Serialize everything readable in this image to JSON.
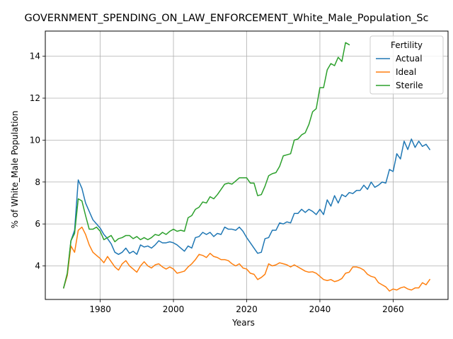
{
  "chart_data": {
    "type": "line",
    "title": "GOVERNMENT_SPENDING_ON_LAW_ENFORCEMENT_White_Male_Population_Sc",
    "xlabel": "Years",
    "ylabel": "% of White_Male Population",
    "xlim": [
      1965,
      2075
    ],
    "ylim": [
      2.4,
      15.2
    ],
    "xticks": [
      1980,
      2000,
      2020,
      2040,
      2060
    ],
    "yticks": [
      4,
      6,
      8,
      10,
      12,
      14
    ],
    "grid": true,
    "legend": {
      "title": "Fertility",
      "placement": "top-right"
    },
    "series": [
      {
        "name": "Actual",
        "color": "#1f77b4",
        "x": [
          1970,
          1971,
          1972,
          1973,
          1974,
          1975,
          1976,
          1977,
          1978,
          1979,
          1980,
          1981,
          1982,
          1983,
          1984,
          1985,
          1986,
          1987,
          1988,
          1989,
          1990,
          1991,
          1992,
          1993,
          1994,
          1995,
          1996,
          1997,
          1998,
          1999,
          2000,
          2001,
          2002,
          2003,
          2004,
          2005,
          2006,
          2007,
          2008,
          2009,
          2010,
          2011,
          2012,
          2013,
          2014,
          2015,
          2016,
          2017,
          2018,
          2019,
          2020,
          2021,
          2022,
          2023,
          2024,
          2025,
          2026,
          2027,
          2028,
          2029,
          2030,
          2031,
          2032,
          2033,
          2034,
          2035,
          2036,
          2037,
          2038,
          2039,
          2040,
          2041,
          2042,
          2043,
          2044,
          2045,
          2046,
          2047,
          2048,
          2049,
          2050,
          2051,
          2052,
          2053,
          2054,
          2055,
          2056,
          2057,
          2058,
          2059,
          2060,
          2061,
          2062,
          2063,
          2064,
          2065,
          2066,
          2067,
          2068,
          2069,
          2070
        ],
        "values": [
          2.95,
          3.55,
          5.2,
          5.7,
          8.1,
          7.7,
          7.0,
          6.6,
          6.2,
          6.0,
          5.8,
          5.5,
          5.3,
          5.05,
          4.65,
          4.55,
          4.65,
          4.85,
          4.6,
          4.7,
          4.55,
          5.0,
          4.9,
          4.95,
          4.85,
          5.0,
          5.2,
          5.1,
          5.1,
          5.15,
          5.1,
          5.0,
          4.85,
          4.7,
          4.95,
          4.85,
          5.35,
          5.4,
          5.6,
          5.5,
          5.6,
          5.4,
          5.55,
          5.5,
          5.85,
          5.75,
          5.75,
          5.7,
          5.85,
          5.65,
          5.35,
          5.1,
          4.85,
          4.6,
          4.65,
          5.3,
          5.35,
          5.7,
          5.7,
          6.05,
          6.0,
          6.1,
          6.05,
          6.5,
          6.5,
          6.7,
          6.55,
          6.7,
          6.6,
          6.45,
          6.7,
          6.45,
          7.15,
          6.85,
          7.35,
          7.0,
          7.4,
          7.3,
          7.5,
          7.45,
          7.6,
          7.6,
          7.85,
          7.65,
          8.0,
          7.75,
          7.85,
          8.0,
          7.95,
          8.6,
          8.5,
          9.35,
          9.1,
          9.95,
          9.55,
          10.05,
          9.65,
          9.95,
          9.7,
          9.8,
          9.55
        ]
      },
      {
        "name": "Ideal",
        "color": "#ff7f0e",
        "x": [
          1970,
          1971,
          1972,
          1973,
          1974,
          1975,
          1976,
          1977,
          1978,
          1979,
          1980,
          1981,
          1982,
          1983,
          1984,
          1985,
          1986,
          1987,
          1988,
          1989,
          1990,
          1991,
          1992,
          1993,
          1994,
          1995,
          1996,
          1997,
          1998,
          1999,
          2000,
          2001,
          2002,
          2003,
          2004,
          2005,
          2006,
          2007,
          2008,
          2009,
          2010,
          2011,
          2012,
          2013,
          2014,
          2015,
          2016,
          2017,
          2018,
          2019,
          2020,
          2021,
          2022,
          2023,
          2024,
          2025,
          2026,
          2027,
          2028,
          2029,
          2030,
          2031,
          2032,
          2033,
          2034,
          2035,
          2036,
          2037,
          2038,
          2039,
          2040,
          2041,
          2042,
          2043,
          2044,
          2045,
          2046,
          2047,
          2048,
          2049,
          2050,
          2051,
          2052,
          2053,
          2054,
          2055,
          2056,
          2057,
          2058,
          2059,
          2060,
          2061,
          2062,
          2063,
          2064,
          2065,
          2066,
          2067,
          2068,
          2069,
          2070
        ],
        "values": [
          2.95,
          3.55,
          4.95,
          4.65,
          5.7,
          5.85,
          5.5,
          5.0,
          4.65,
          4.5,
          4.35,
          4.15,
          4.45,
          4.2,
          3.95,
          3.8,
          4.1,
          4.25,
          4.0,
          3.85,
          3.7,
          4.0,
          4.2,
          4.0,
          3.9,
          4.05,
          4.1,
          3.95,
          3.85,
          3.95,
          3.85,
          3.65,
          3.7,
          3.75,
          3.95,
          4.1,
          4.3,
          4.55,
          4.5,
          4.4,
          4.6,
          4.45,
          4.4,
          4.3,
          4.3,
          4.25,
          4.1,
          4.0,
          4.1,
          3.9,
          3.85,
          3.65,
          3.6,
          3.35,
          3.45,
          3.6,
          4.1,
          4.0,
          4.05,
          4.15,
          4.1,
          4.05,
          3.95,
          4.05,
          3.95,
          3.85,
          3.75,
          3.7,
          3.72,
          3.65,
          3.5,
          3.35,
          3.3,
          3.35,
          3.25,
          3.3,
          3.4,
          3.65,
          3.7,
          3.95,
          3.95,
          3.9,
          3.8,
          3.6,
          3.5,
          3.45,
          3.2,
          3.1,
          3.0,
          2.8,
          2.9,
          2.85,
          2.95,
          3.0,
          2.9,
          2.85,
          2.95,
          2.95,
          3.2,
          3.1,
          3.35
        ]
      },
      {
        "name": "Sterile",
        "color": "#2ca02c",
        "x": [
          1970,
          1971,
          1972,
          1973,
          1974,
          1975,
          1976,
          1977,
          1978,
          1979,
          1980,
          1981,
          1982,
          1983,
          1984,
          1985,
          1986,
          1987,
          1988,
          1989,
          1990,
          1991,
          1992,
          1993,
          1994,
          1995,
          1996,
          1997,
          1998,
          1999,
          2000,
          2001,
          2002,
          2003,
          2004,
          2005,
          2006,
          2007,
          2008,
          2009,
          2010,
          2011,
          2012,
          2013,
          2014,
          2015,
          2016,
          2017,
          2018,
          2019,
          2020,
          2021,
          2022,
          2023,
          2024,
          2025,
          2026,
          2027,
          2028,
          2029,
          2030,
          2031,
          2032,
          2033,
          2034,
          2035,
          2036,
          2037,
          2038,
          2039,
          2040,
          2041,
          2042,
          2043,
          2044,
          2045,
          2046,
          2047,
          2048
        ],
        "values": [
          2.95,
          3.65,
          5.2,
          5.55,
          7.2,
          7.1,
          6.4,
          5.75,
          5.75,
          5.85,
          5.65,
          5.25,
          5.35,
          5.45,
          5.15,
          5.3,
          5.35,
          5.45,
          5.45,
          5.3,
          5.4,
          5.25,
          5.35,
          5.25,
          5.35,
          5.5,
          5.45,
          5.6,
          5.5,
          5.65,
          5.75,
          5.65,
          5.7,
          5.65,
          6.3,
          6.4,
          6.7,
          6.8,
          7.05,
          7.0,
          7.3,
          7.2,
          7.4,
          7.65,
          7.9,
          7.95,
          7.9,
          8.05,
          8.2,
          8.2,
          8.2,
          7.95,
          7.95,
          7.35,
          7.4,
          7.8,
          8.3,
          8.4,
          8.45,
          8.75,
          9.25,
          9.3,
          9.35,
          10.0,
          10.05,
          10.25,
          10.35,
          10.75,
          11.35,
          11.5,
          12.5,
          12.5,
          13.35,
          13.65,
          13.55,
          13.95,
          13.75,
          14.65,
          14.55
        ]
      }
    ]
  }
}
